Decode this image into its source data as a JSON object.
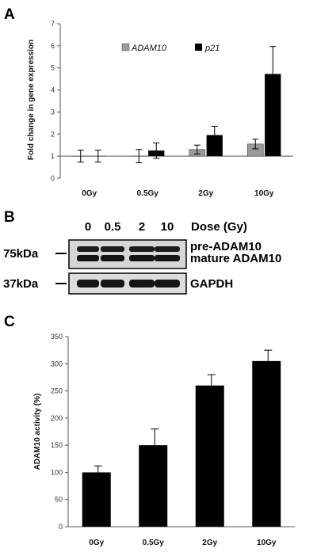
{
  "panels": {
    "a": "A",
    "b": "B",
    "c": "C"
  },
  "colors": {
    "adam10": "#9a9a9a",
    "p21": "#000000",
    "bar": "#000000"
  },
  "chart_data": [
    {
      "type": "bar",
      "panel": "A",
      "categories": [
        "0Gy",
        "0.5Gy",
        "2Gy",
        "10Gy"
      ],
      "series": [
        {
          "name": "ADAM10",
          "values": [
            1.0,
            1.0,
            1.3,
            1.55
          ],
          "errors": [
            0.27,
            0.3,
            0.2,
            0.22
          ]
        },
        {
          "name": "p21",
          "values": [
            1.0,
            1.25,
            1.95,
            4.72
          ],
          "errors": [
            0.27,
            0.35,
            0.4,
            1.25
          ]
        }
      ],
      "ylabel": "Fold change in gene expression",
      "ylim": [
        0,
        7
      ],
      "yticks": [
        0,
        1,
        2,
        3,
        4,
        5,
        6,
        7
      ],
      "legend": "top"
    },
    {
      "type": "bar",
      "panel": "C",
      "categories": [
        "0Gy",
        "0.5Gy",
        "2Gy",
        "10Gy"
      ],
      "values": [
        100,
        150,
        260,
        305
      ],
      "errors": [
        12,
        30,
        20,
        20
      ],
      "ylabel": "ADAM10 activity (%)",
      "ylim": [
        0,
        350
      ],
      "yticks": [
        0,
        50,
        100,
        150,
        200,
        250,
        300,
        350
      ]
    }
  ],
  "blot": {
    "doses": [
      "0",
      "0.5",
      "2",
      "10"
    ],
    "dose_label": "Dose (Gy)",
    "markers": [
      "75kDa",
      "37kDa"
    ],
    "labels": [
      "pre-ADAM10",
      "mature ADAM10",
      "GAPDH"
    ]
  }
}
